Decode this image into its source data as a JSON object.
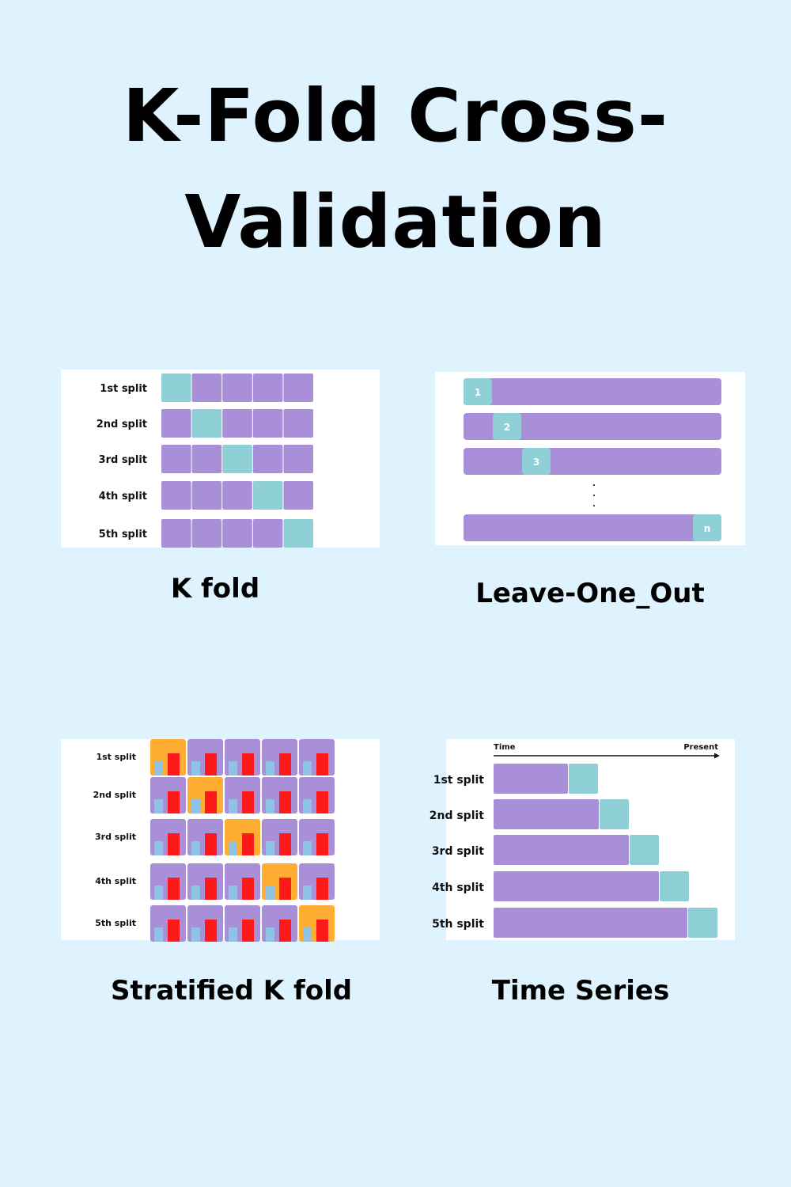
{
  "title": "K-Fold Cross-Validation",
  "colors": {
    "background": "#dff3ff",
    "train": "#a98fd8",
    "test": "#8fcfd6",
    "stratified_test": "#ffad33",
    "class_a": "#8fc3e6",
    "class_b": "#ff1a1a"
  },
  "panels": {
    "kfold": {
      "caption": "K fold",
      "splits": [
        "1st split",
        "2nd split",
        "3rd split",
        "4th split",
        "5th split"
      ]
    },
    "loo": {
      "caption": "Leave-One_Out",
      "rows": [
        "1",
        "2",
        "3",
        "n"
      ],
      "ellipsis": "."
    },
    "stratified": {
      "caption": "Stratified K fold",
      "splits": [
        "1st split",
        "2nd split",
        "3rd split",
        "4th split",
        "5th split"
      ]
    },
    "timeseries": {
      "caption": "Time Series",
      "axis_start": "Time",
      "axis_end": "Present",
      "splits": [
        "1st split",
        "2nd split",
        "3rd split",
        "4th split",
        "5th split"
      ]
    }
  }
}
